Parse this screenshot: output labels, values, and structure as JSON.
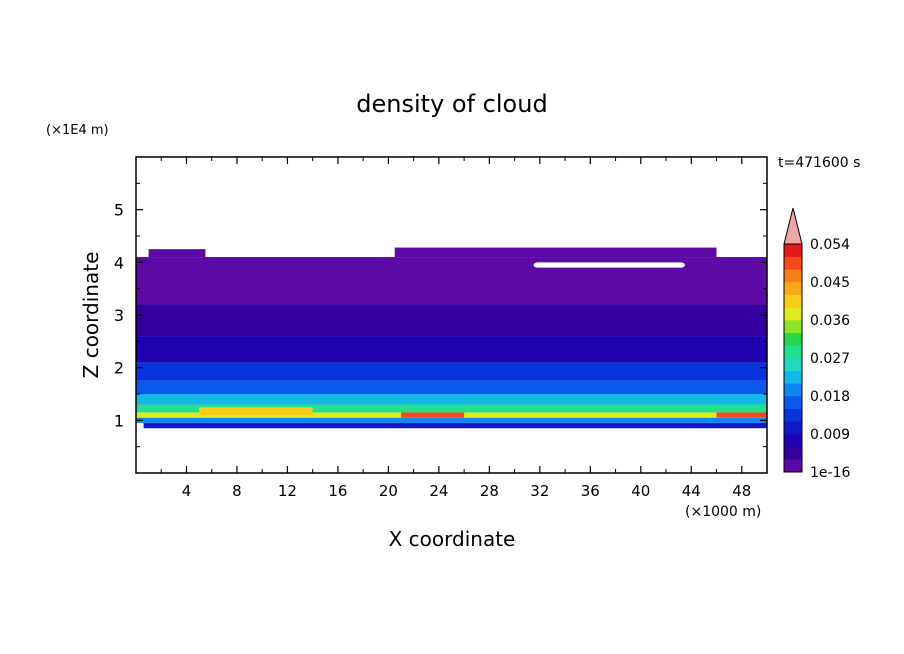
{
  "chart_data": {
    "type": "heatmap",
    "title": "density of cloud",
    "xlabel": "X coordinate",
    "ylabel": "Z coordinate",
    "x_unit": "(×1000 m)",
    "y_unit": "(×1E4 m)",
    "time_label": "t=471600 s",
    "xlim": [
      0,
      50
    ],
    "ylim": [
      0,
      6
    ],
    "x_ticks": [
      "4",
      "8",
      "12",
      "16",
      "20",
      "24",
      "28",
      "32",
      "36",
      "40",
      "44",
      "48"
    ],
    "y_ticks": [
      "1",
      "2",
      "3",
      "4",
      "5"
    ],
    "grid": false,
    "colorbar": {
      "labels": [
        "1e-16",
        "0.009",
        "0.018",
        "0.027",
        "0.036",
        "0.045",
        "0.054"
      ],
      "colors": [
        "#5b0aa5",
        "#33009f",
        "#1f03b0",
        "#0f19c6",
        "#0535db",
        "#0a58ec",
        "#0f86f2",
        "#18b5ea",
        "#20d9c4",
        "#22e08d",
        "#2ad64a",
        "#8ee62b",
        "#dfea1f",
        "#f6ce1a",
        "#fba818",
        "#f97d1a",
        "#f24a1a",
        "#e3191b"
      ],
      "overflow_color": "#f0a6a6"
    },
    "bands": [
      {
        "z_bottom": 0.85,
        "z_top": 0.95,
        "x_start": 0.6,
        "x_end": 50,
        "level": 3
      },
      {
        "z_bottom": 0.95,
        "z_top": 1.05,
        "x_start": 0,
        "x_end": 50,
        "level": 6
      },
      {
        "z_bottom": 1.05,
        "z_top": 1.15,
        "x_start": 0,
        "x_end": 50,
        "level": 12
      },
      {
        "z_bottom": 1.15,
        "z_top": 1.3,
        "x_start": 0,
        "x_end": 50,
        "level": 9
      },
      {
        "z_bottom": 1.3,
        "z_top": 1.5,
        "x_start": 0,
        "x_end": 50,
        "level": 7
      },
      {
        "z_bottom": 1.5,
        "z_top": 1.75,
        "x_start": 0,
        "x_end": 50,
        "level": 5
      },
      {
        "z_bottom": 1.75,
        "z_top": 2.1,
        "x_start": 0,
        "x_end": 50,
        "level": 4
      },
      {
        "z_bottom": 2.1,
        "z_top": 2.6,
        "x_start": 0,
        "x_end": 50,
        "level": 2
      },
      {
        "z_bottom": 2.6,
        "z_top": 3.2,
        "x_start": 0,
        "x_end": 50,
        "level": 1
      },
      {
        "z_bottom": 3.2,
        "z_top": 4.1,
        "x_start": 0,
        "x_end": 50,
        "level": 0
      },
      {
        "z_bottom": 4.1,
        "z_top": 4.25,
        "x_start": 1.0,
        "x_end": 5.5,
        "level": 0
      },
      {
        "z_bottom": 4.1,
        "z_top": 4.28,
        "x_start": 20.5,
        "x_end": 46.0,
        "level": 0
      }
    ],
    "highlights": [
      {
        "z_bottom": 1.05,
        "z_top": 1.15,
        "x_start": 21,
        "x_end": 26,
        "level": 16
      },
      {
        "z_bottom": 1.05,
        "z_top": 1.15,
        "x_start": 46,
        "x_end": 50,
        "level": 16
      },
      {
        "z_bottom": 1.1,
        "z_top": 1.25,
        "x_start": 5,
        "x_end": 14,
        "level": 13
      }
    ],
    "gaps": [
      {
        "z_bottom": 3.9,
        "z_top": 4.0,
        "x_start": 31.5,
        "x_end": 43.5
      }
    ]
  }
}
